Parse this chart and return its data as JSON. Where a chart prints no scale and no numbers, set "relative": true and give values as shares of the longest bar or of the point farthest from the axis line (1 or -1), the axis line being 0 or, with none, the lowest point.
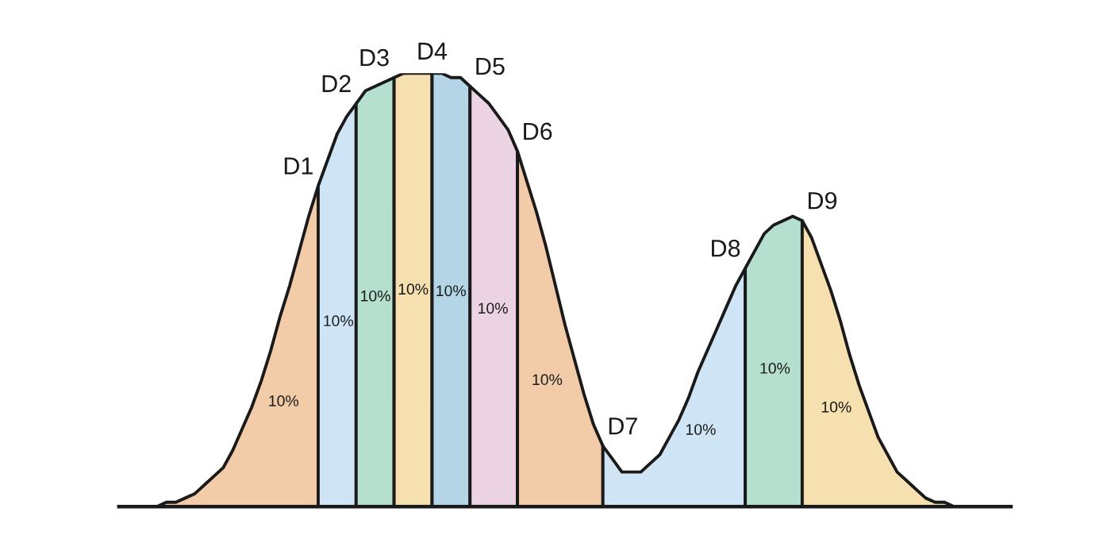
{
  "chart_data": {
    "type": "area",
    "relative": true,
    "categories": [
      null,
      null,
      null,
      null,
      null,
      null,
      null,
      null,
      null,
      null,
      null,
      null,
      null,
      null,
      null,
      null,
      null,
      null,
      null,
      null,
      null,
      null,
      null,
      null,
      null,
      null,
      null,
      null,
      null,
      null,
      null,
      null,
      null,
      null,
      null,
      null,
      null,
      null,
      null,
      null,
      null,
      null,
      null,
      null,
      null,
      null,
      null,
      null,
      null,
      null,
      null,
      null,
      null,
      null,
      null,
      null,
      null,
      null,
      null,
      null,
      null,
      null,
      null,
      null,
      null,
      null,
      null,
      null,
      null,
      null,
      null,
      null,
      null,
      null,
      null,
      null,
      null,
      null,
      null,
      null,
      null,
      null,
      null,
      null,
      null,
      null,
      null,
      null,
      null,
      null,
      null,
      null,
      null,
      null,
      null
    ],
    "series": [
      {
        "color": "#f2cba8",
        "values": [
          0,
          0,
          0,
          0,
          0,
          0.01,
          0.01,
          0.02,
          0.03,
          0.05,
          0.07,
          0.09,
          0.13,
          0.18,
          0.23,
          0.29,
          0.36,
          0.44,
          0.51,
          0.59,
          0.67,
          0.74,
          null,
          null,
          null,
          null,
          null,
          null,
          null,
          null,
          null,
          null,
          null,
          null,
          null,
          null,
          null,
          null,
          null,
          null,
          null,
          null,
          null,
          null,
          null,
          null,
          null,
          null,
          null,
          null,
          null,
          null,
          null,
          null,
          null,
          null,
          null,
          null,
          null,
          null,
          null,
          null,
          null,
          null,
          null,
          null,
          null,
          null,
          null,
          null,
          null,
          null,
          null,
          null,
          null,
          null,
          null,
          null,
          null,
          null,
          null,
          null,
          null,
          null,
          null,
          null,
          null,
          null,
          null,
          null,
          null,
          null,
          null,
          null,
          null
        ]
      },
      {
        "color": "#cfe5f5",
        "values": [
          null,
          null,
          null,
          null,
          null,
          null,
          null,
          null,
          null,
          null,
          null,
          null,
          null,
          null,
          null,
          null,
          null,
          null,
          null,
          null,
          null,
          0.74,
          0.8,
          0.86,
          0.9,
          0.93,
          null,
          null,
          null,
          null,
          null,
          null,
          null,
          null,
          null,
          null,
          null,
          null,
          null,
          null,
          null,
          null,
          null,
          null,
          null,
          null,
          null,
          null,
          null,
          null,
          null,
          null,
          null,
          null,
          null,
          null,
          null,
          null,
          null,
          null,
          null,
          null,
          null,
          null,
          null,
          null,
          null,
          null,
          null,
          null,
          null,
          null,
          null,
          null,
          null,
          null,
          null,
          null,
          null,
          null,
          null,
          null,
          null,
          null,
          null,
          null,
          null,
          null,
          null,
          null,
          null,
          null,
          null,
          null,
          null
        ]
      },
      {
        "color": "#b5e0d0",
        "values": [
          null,
          null,
          null,
          null,
          null,
          null,
          null,
          null,
          null,
          null,
          null,
          null,
          null,
          null,
          null,
          null,
          null,
          null,
          null,
          null,
          null,
          null,
          null,
          null,
          null,
          0.93,
          0.96,
          0.97,
          0.98,
          0.99,
          null,
          null,
          null,
          null,
          null,
          null,
          null,
          null,
          null,
          null,
          null,
          null,
          null,
          null,
          null,
          null,
          null,
          null,
          null,
          null,
          null,
          null,
          null,
          null,
          null,
          null,
          null,
          null,
          null,
          null,
          null,
          null,
          null,
          null,
          null,
          null,
          null,
          null,
          null,
          null,
          null,
          null,
          null,
          null,
          null,
          null,
          null,
          null,
          null,
          null,
          null,
          null,
          null,
          null,
          null,
          null,
          null,
          null,
          null,
          null,
          null,
          null,
          null,
          null,
          null
        ]
      },
      {
        "color": "#f6e0b0",
        "values": [
          null,
          null,
          null,
          null,
          null,
          null,
          null,
          null,
          null,
          null,
          null,
          null,
          null,
          null,
          null,
          null,
          null,
          null,
          null,
          null,
          null,
          null,
          null,
          null,
          null,
          null,
          null,
          null,
          null,
          0.99,
          1,
          1,
          1,
          1,
          null,
          null,
          null,
          null,
          null,
          null,
          null,
          null,
          null,
          null,
          null,
          null,
          null,
          null,
          null,
          null,
          null,
          null,
          null,
          null,
          null,
          null,
          null,
          null,
          null,
          null,
          null,
          null,
          null,
          null,
          null,
          null,
          null,
          null,
          null,
          null,
          null,
          null,
          null,
          null,
          null,
          null,
          null,
          null,
          null,
          null,
          null,
          null,
          null,
          null,
          null,
          null,
          null,
          null,
          null,
          null,
          null,
          null,
          null,
          null,
          null
        ]
      },
      {
        "color": "#b3d5e6",
        "values": [
          null,
          null,
          null,
          null,
          null,
          null,
          null,
          null,
          null,
          null,
          null,
          null,
          null,
          null,
          null,
          null,
          null,
          null,
          null,
          null,
          null,
          null,
          null,
          null,
          null,
          null,
          null,
          null,
          null,
          null,
          null,
          null,
          null,
          1,
          1,
          0.99,
          0.99,
          0.97,
          null,
          null,
          null,
          null,
          null,
          null,
          null,
          null,
          null,
          null,
          null,
          null,
          null,
          null,
          null,
          null,
          null,
          null,
          null,
          null,
          null,
          null,
          null,
          null,
          null,
          null,
          null,
          null,
          null,
          null,
          null,
          null,
          null,
          null,
          null,
          null,
          null,
          null,
          null,
          null,
          null,
          null,
          null,
          null,
          null,
          null,
          null,
          null,
          null,
          null,
          null,
          null,
          null,
          null,
          null,
          null,
          null
        ]
      },
      {
        "color": "#ecd3e3",
        "values": [
          null,
          null,
          null,
          null,
          null,
          null,
          null,
          null,
          null,
          null,
          null,
          null,
          null,
          null,
          null,
          null,
          null,
          null,
          null,
          null,
          null,
          null,
          null,
          null,
          null,
          null,
          null,
          null,
          null,
          null,
          null,
          null,
          null,
          null,
          null,
          null,
          null,
          0.97,
          0.95,
          0.93,
          0.9,
          0.87,
          0.82,
          null,
          null,
          null,
          null,
          null,
          null,
          null,
          null,
          null,
          null,
          null,
          null,
          null,
          null,
          null,
          null,
          null,
          null,
          null,
          null,
          null,
          null,
          null,
          null,
          null,
          null,
          null,
          null,
          null,
          null,
          null,
          null,
          null,
          null,
          null,
          null,
          null,
          null,
          null,
          null,
          null,
          null,
          null,
          null,
          null,
          null,
          null,
          null,
          null,
          null,
          null,
          null
        ]
      },
      {
        "color": "#f2cba8",
        "values": [
          null,
          null,
          null,
          null,
          null,
          null,
          null,
          null,
          null,
          null,
          null,
          null,
          null,
          null,
          null,
          null,
          null,
          null,
          null,
          null,
          null,
          null,
          null,
          null,
          null,
          null,
          null,
          null,
          null,
          null,
          null,
          null,
          null,
          null,
          null,
          null,
          null,
          null,
          null,
          null,
          null,
          null,
          0.82,
          0.75,
          0.68,
          0.6,
          0.51,
          0.42,
          0.34,
          0.26,
          0.19,
          0.14,
          null,
          null,
          null,
          null,
          null,
          null,
          null,
          null,
          null,
          null,
          null,
          null,
          null,
          null,
          null,
          null,
          null,
          null,
          null,
          null,
          null,
          null,
          null,
          null,
          null,
          null,
          null,
          null,
          null,
          null,
          null,
          null,
          null,
          null,
          null,
          null,
          null,
          null,
          null,
          null,
          null,
          null,
          null
        ]
      },
      {
        "color": "#cfe5f5",
        "values": [
          null,
          null,
          null,
          null,
          null,
          null,
          null,
          null,
          null,
          null,
          null,
          null,
          null,
          null,
          null,
          null,
          null,
          null,
          null,
          null,
          null,
          null,
          null,
          null,
          null,
          null,
          null,
          null,
          null,
          null,
          null,
          null,
          null,
          null,
          null,
          null,
          null,
          null,
          null,
          null,
          null,
          null,
          null,
          null,
          null,
          null,
          null,
          null,
          null,
          null,
          null,
          0.14,
          0.11,
          0.08,
          0.08,
          0.08,
          0.1,
          0.12,
          0.16,
          0.2,
          0.25,
          0.31,
          0.36,
          0.41,
          0.46,
          0.51,
          0.55,
          null,
          null,
          null,
          null,
          null,
          null,
          null,
          null,
          null,
          null,
          null,
          null,
          null,
          null,
          null,
          null,
          null,
          null,
          null,
          null,
          null,
          null,
          null,
          null,
          null,
          null,
          null,
          null
        ]
      },
      {
        "color": "#b5e0d0",
        "values": [
          null,
          null,
          null,
          null,
          null,
          null,
          null,
          null,
          null,
          null,
          null,
          null,
          null,
          null,
          null,
          null,
          null,
          null,
          null,
          null,
          null,
          null,
          null,
          null,
          null,
          null,
          null,
          null,
          null,
          null,
          null,
          null,
          null,
          null,
          null,
          null,
          null,
          null,
          null,
          null,
          null,
          null,
          null,
          null,
          null,
          null,
          null,
          null,
          null,
          null,
          null,
          null,
          null,
          null,
          null,
          null,
          null,
          null,
          null,
          null,
          null,
          null,
          null,
          null,
          null,
          null,
          0.55,
          0.59,
          0.63,
          0.65,
          0.66,
          0.67,
          0.66,
          null,
          null,
          null,
          null,
          null,
          null,
          null,
          null,
          null,
          null,
          null,
          null,
          null,
          null,
          null,
          null,
          null,
          null,
          null,
          null,
          null,
          null
        ]
      },
      {
        "color": "#f6e0b0",
        "values": [
          null,
          null,
          null,
          null,
          null,
          null,
          null,
          null,
          null,
          null,
          null,
          null,
          null,
          null,
          null,
          null,
          null,
          null,
          null,
          null,
          null,
          null,
          null,
          null,
          null,
          null,
          null,
          null,
          null,
          null,
          null,
          null,
          null,
          null,
          null,
          null,
          null,
          null,
          null,
          null,
          null,
          null,
          null,
          null,
          null,
          null,
          null,
          null,
          null,
          null,
          null,
          null,
          null,
          null,
          null,
          null,
          null,
          null,
          null,
          null,
          null,
          null,
          null,
          null,
          null,
          null,
          null,
          null,
          null,
          null,
          null,
          null,
          0.66,
          0.62,
          0.56,
          0.5,
          0.43,
          0.35,
          0.28,
          0.22,
          0.16,
          0.12,
          0.08,
          0.06,
          0.04,
          0.02,
          0.01,
          0.01,
          0,
          0,
          0,
          0,
          0,
          0,
          0
        ]
      }
    ],
    "annotations": [
      "D1",
      "D2",
      "D3",
      "D4",
      "D5",
      "D6",
      "D7",
      "D8",
      "D9",
      "10%",
      "10%",
      "10%",
      "10%",
      "10%",
      "10%",
      "10%",
      "10%",
      "10%",
      "10%"
    ]
  }
}
